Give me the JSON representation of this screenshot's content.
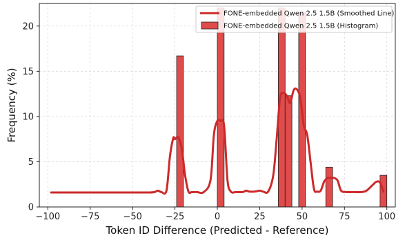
{
  "chart_data": {
    "type": "bar",
    "xlabel": "Token ID Difference (Predicted - Reference)",
    "ylabel": "Frequency (%)",
    "xlim": [
      -105,
      105
    ],
    "ylim": [
      0,
      22.5
    ],
    "xticks": [
      -100,
      -75,
      -50,
      -25,
      0,
      25,
      50,
      75,
      100
    ],
    "xtick_labels": [
      "−100",
      "−75",
      "−50",
      "−25",
      "0",
      "25",
      "50",
      "75",
      "100"
    ],
    "yticks": [
      0,
      5,
      10,
      15,
      20
    ],
    "ytick_labels": [
      "0",
      "5",
      "10",
      "15",
      "20"
    ],
    "grid": true,
    "legend_position": "top-right",
    "colors": {
      "line": "#cc2a2a",
      "bar": "#e04b4b",
      "bar_edge": "#222222"
    },
    "series": [
      {
        "name": "FONE-embedded Qwen 2.5 1.5B (Smoothed Line)",
        "type": "line",
        "x": [
          -98,
          -90,
          -80,
          -70,
          -60,
          -50,
          -40,
          -37,
          -35,
          -33,
          -30,
          -28,
          -26,
          -25,
          -23,
          -21,
          -19,
          -17,
          -15,
          -12,
          -8,
          -4,
          -2,
          0,
          2,
          4,
          6,
          8,
          11,
          15,
          17,
          19,
          22,
          25,
          27,
          30,
          33,
          35,
          37,
          39,
          41,
          43,
          45,
          47,
          49,
          51,
          53,
          55,
          57,
          59,
          61,
          63,
          65,
          67,
          69,
          71,
          73,
          76,
          80,
          85,
          88,
          92,
          94,
          96,
          98
        ],
        "y": [
          1.6,
          1.6,
          1.6,
          1.6,
          1.6,
          1.6,
          1.6,
          1.65,
          1.8,
          1.65,
          1.8,
          5.5,
          7.6,
          7.5,
          7.7,
          6.5,
          3.5,
          1.7,
          1.65,
          1.65,
          1.65,
          3.0,
          8.0,
          9.5,
          9.5,
          9.0,
          3.0,
          1.7,
          1.65,
          1.65,
          1.8,
          1.7,
          1.7,
          1.8,
          1.7,
          1.7,
          3.5,
          7.5,
          12.0,
          12.6,
          12.3,
          11.5,
          12.9,
          13.0,
          12.0,
          9.0,
          8.0,
          5.0,
          2.0,
          1.7,
          1.8,
          2.8,
          3.2,
          3.2,
          3.2,
          2.9,
          1.8,
          1.65,
          1.65,
          1.65,
          1.8,
          2.5,
          2.8,
          2.7,
          1.7
        ]
      },
      {
        "name": "FONE-embedded Qwen 2.5 1.5B (Histogram)",
        "type": "bar",
        "bins": [
          [
            -24,
            -20
          ],
          [
            0,
            4
          ],
          [
            36,
            40
          ],
          [
            40,
            44
          ],
          [
            48,
            52
          ],
          [
            64,
            68
          ],
          [
            96,
            100
          ]
        ],
        "values": [
          16.7,
          22.0,
          22.0,
          12.3,
          21.5,
          4.4,
          3.5
        ]
      }
    ]
  }
}
